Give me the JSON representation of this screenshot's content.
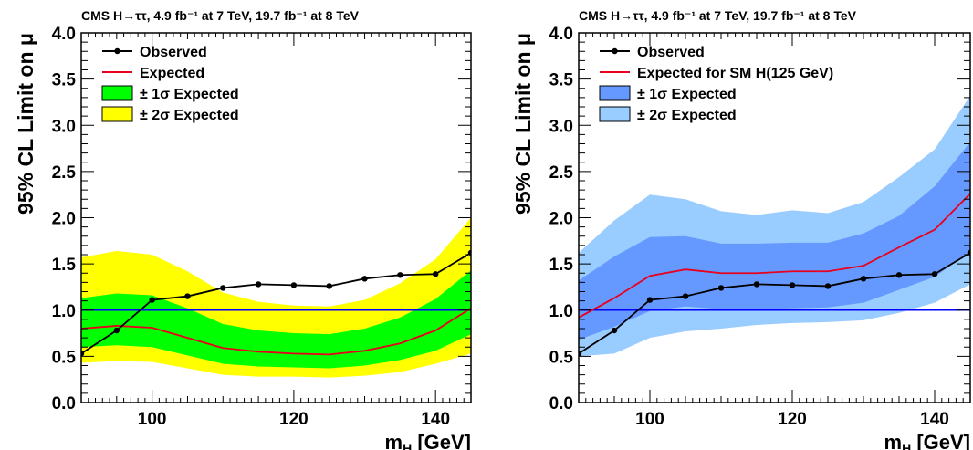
{
  "chart_data": [
    {
      "type": "line",
      "header": "CMS H→ττ, 4.9 fb⁻¹ at 7 TeV, 19.7 fb⁻¹ at 8 TeV",
      "xlabel": "mH [GeV]",
      "xlabel_main": "m",
      "xlabel_sub": "H",
      "xlabel_unit": " [GeV]",
      "ylabel": "95% CL Limit on μ",
      "xlim": [
        90,
        145
      ],
      "ylim": [
        0,
        4
      ],
      "x_ticks": [
        100,
        120,
        140
      ],
      "y_ticks": [
        "0.0",
        "0.5",
        "1.0",
        "1.5",
        "2.0",
        "2.5",
        "3.0",
        "3.5",
        "4.0"
      ],
      "reference_line": 1.0,
      "legend_position": "top-left",
      "legend": {
        "observed": "Observed",
        "expected": "Expected",
        "band1": "± 1σ Expected",
        "band2": "± 2σ Expected"
      },
      "colors": {
        "band1": "#00ff00",
        "band2": "#ffff00",
        "expected": "#e8001c",
        "observed": "#000000",
        "reference": "#0000ff"
      },
      "x": [
        90,
        95,
        100,
        105,
        110,
        115,
        120,
        125,
        130,
        135,
        140,
        145
      ],
      "observed": [
        0.53,
        0.78,
        1.11,
        1.15,
        1.24,
        1.28,
        1.27,
        1.26,
        1.34,
        1.38,
        1.39,
        1.62
      ],
      "expected": [
        0.8,
        0.83,
        0.81,
        0.7,
        0.59,
        0.55,
        0.53,
        0.52,
        0.56,
        0.64,
        0.78,
        1.02
      ],
      "band1_low": [
        0.6,
        0.62,
        0.6,
        0.51,
        0.42,
        0.39,
        0.38,
        0.37,
        0.4,
        0.46,
        0.56,
        0.74
      ],
      "band1_high": [
        1.13,
        1.18,
        1.16,
        1.02,
        0.85,
        0.78,
        0.75,
        0.74,
        0.8,
        0.92,
        1.12,
        1.43
      ],
      "band2_low": [
        0.43,
        0.45,
        0.44,
        0.37,
        0.3,
        0.28,
        0.28,
        0.27,
        0.29,
        0.33,
        0.42,
        0.53
      ],
      "band2_high": [
        1.57,
        1.64,
        1.6,
        1.42,
        1.19,
        1.09,
        1.05,
        1.04,
        1.11,
        1.29,
        1.55,
        2.0
      ]
    },
    {
      "type": "line",
      "header": "CMS H→ττ, 4.9 fb⁻¹ at 7 TeV, 19.7 fb⁻¹ at 8 TeV",
      "xlabel": "mH [GeV]",
      "xlabel_main": "m",
      "xlabel_sub": "H",
      "xlabel_unit": " [GeV]",
      "ylabel": "95% CL Limit on μ",
      "xlim": [
        90,
        145
      ],
      "ylim": [
        0,
        4
      ],
      "x_ticks": [
        100,
        120,
        140
      ],
      "y_ticks": [
        "0.0",
        "0.5",
        "1.0",
        "1.5",
        "2.0",
        "2.5",
        "3.0",
        "3.5",
        "4.0"
      ],
      "reference_line": 1.0,
      "legend_position": "top-left",
      "legend": {
        "observed": "Observed",
        "expected": "Expected for SM H(125 GeV)",
        "band1": "± 1σ Expected",
        "band2": "± 2σ Expected"
      },
      "colors": {
        "band1": "#6699ff",
        "band2": "#99ccff",
        "expected": "#e8001c",
        "observed": "#000000",
        "reference": "#0000ff"
      },
      "x": [
        90,
        95,
        100,
        105,
        110,
        115,
        120,
        125,
        130,
        135,
        140,
        145
      ],
      "observed": [
        0.53,
        0.78,
        1.11,
        1.15,
        1.24,
        1.28,
        1.27,
        1.26,
        1.34,
        1.38,
        1.39,
        1.62
      ],
      "expected": [
        0.92,
        1.13,
        1.37,
        1.44,
        1.4,
        1.4,
        1.42,
        1.42,
        1.48,
        1.68,
        1.87,
        2.26
      ],
      "band1_low": [
        0.68,
        0.82,
        0.99,
        1.04,
        1.01,
        1.01,
        1.02,
        1.03,
        1.08,
        1.22,
        1.36,
        1.63
      ],
      "band1_high": [
        1.32,
        1.58,
        1.79,
        1.8,
        1.72,
        1.72,
        1.73,
        1.73,
        1.83,
        2.02,
        2.34,
        2.82
      ],
      "band2_low": [
        0.5,
        0.53,
        0.7,
        0.77,
        0.8,
        0.84,
        0.86,
        0.87,
        0.89,
        0.97,
        1.08,
        1.28
      ],
      "band2_high": [
        1.62,
        1.97,
        2.25,
        2.2,
        2.07,
        2.03,
        2.08,
        2.05,
        2.17,
        2.44,
        2.74,
        3.32
      ]
    }
  ]
}
